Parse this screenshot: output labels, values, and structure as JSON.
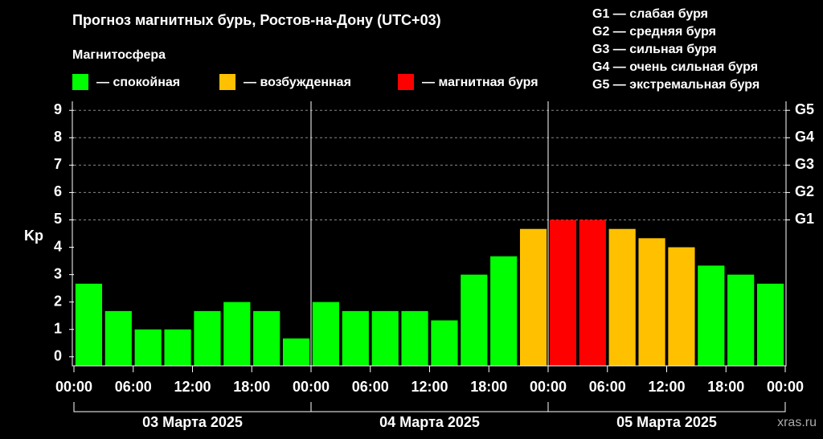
{
  "chart_data": {
    "type": "bar",
    "title": "Прогноз магнитных бурь, Ростов-на-Дону (UTC+03)",
    "y_label": "Kp",
    "legend": {
      "title": "Магнитосфера",
      "items": [
        {
          "label": "— спокойная",
          "color": "#00ff00"
        },
        {
          "label": "— возбужденная",
          "color": "#ffc000"
        },
        {
          "label": "— магнитная буря",
          "color": "#ff0000"
        }
      ]
    },
    "storm_scale": [
      "G1 — слабая буря",
      "G2 — средняя буря",
      "G3 — сильная буря",
      "G4 — очень сильная буря",
      "G5 — экстремальная буря"
    ],
    "x": [
      1.5,
      4.5,
      7.5,
      10.5,
      13.5,
      16.5,
      19.5,
      22.5,
      25.5,
      28.5,
      31.5,
      34.5,
      37.5,
      40.5,
      43.5,
      46.5,
      49.5,
      52.5,
      55.5,
      58.5,
      61.5,
      64.5,
      67.5,
      70.5
    ],
    "values": [
      2.67,
      1.67,
      1,
      1,
      1.67,
      2,
      1.67,
      0.67,
      2,
      1.67,
      1.67,
      1.67,
      1.33,
      3,
      3.67,
      4.67,
      5,
      5,
      4.67,
      4.33,
      4,
      3.33,
      3,
      2.67
    ],
    "colors": [
      "#00ff00",
      "#00ff00",
      "#00ff00",
      "#00ff00",
      "#00ff00",
      "#00ff00",
      "#00ff00",
      "#00ff00",
      "#00ff00",
      "#00ff00",
      "#00ff00",
      "#00ff00",
      "#00ff00",
      "#00ff00",
      "#00ff00",
      "#ffc000",
      "#ff0000",
      "#ff0000",
      "#ffc000",
      "#ffc000",
      "#ffc000",
      "#00ff00",
      "#00ff00",
      "#00ff00"
    ],
    "xlim": [
      0,
      72
    ],
    "xticks": [
      {
        "value": 0,
        "label": "00:00"
      },
      {
        "value": 6,
        "label": "06:00"
      },
      {
        "value": 12,
        "label": "12:00"
      },
      {
        "value": 18,
        "label": "18:00"
      },
      {
        "value": 24,
        "label": "00:00"
      },
      {
        "value": 30,
        "label": "06:00"
      },
      {
        "value": 36,
        "label": "12:00"
      },
      {
        "value": 42,
        "label": "18:00"
      },
      {
        "value": 48,
        "label": "00:00"
      },
      {
        "value": 54,
        "label": "06:00"
      },
      {
        "value": 60,
        "label": "12:00"
      },
      {
        "value": 66,
        "label": "18:00"
      },
      {
        "value": 72,
        "label": "00:00"
      }
    ],
    "days": [
      {
        "label": "03 Марта 2025",
        "start": 0,
        "end": 24
      },
      {
        "label": "04 Марта 2025",
        "start": 24,
        "end": 48
      },
      {
        "label": "05 Марта 2025",
        "start": 48,
        "end": 72
      }
    ],
    "ylim": [
      -0.33,
      9.33
    ],
    "yticks": [
      0,
      1,
      2,
      3,
      4,
      5,
      6,
      7,
      8,
      9
    ],
    "y2lim": [
      -0.33,
      9.33
    ],
    "y2ticks": [
      {
        "value": 5,
        "label": "G1"
      },
      {
        "value": 6,
        "label": "G2"
      },
      {
        "value": 7,
        "label": "G3"
      },
      {
        "value": 8,
        "label": "G4"
      },
      {
        "value": 9,
        "label": "G5"
      }
    ],
    "grid_from": 5,
    "watermark": "xras.ru"
  }
}
